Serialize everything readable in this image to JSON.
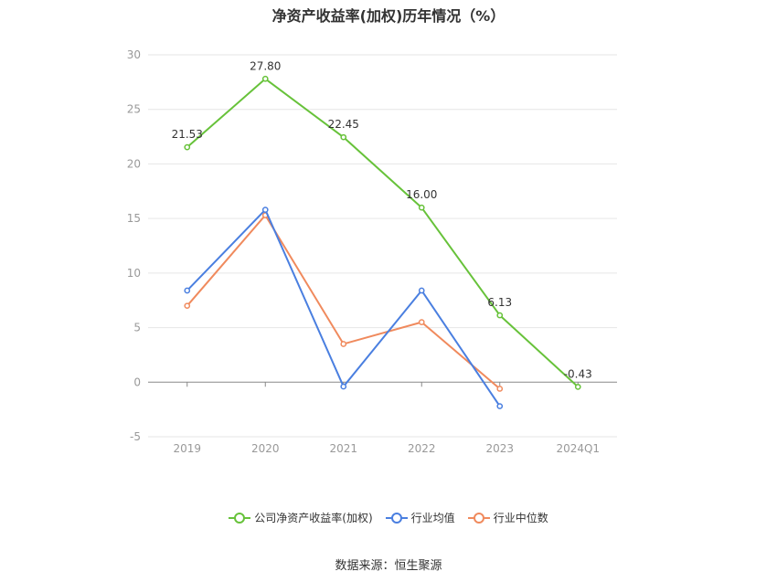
{
  "chart_data": {
    "type": "line",
    "title": "净资产收益率(加权)历年情况（%）",
    "categories": [
      "2019",
      "2020",
      "2021",
      "2022",
      "2023",
      "2024Q1"
    ],
    "ylim": [
      -5,
      30
    ],
    "yticks": [
      -5,
      0,
      5,
      10,
      15,
      20,
      25,
      30
    ],
    "grid": true,
    "legend_position": "bottom",
    "series": [
      {
        "name": "公司净资产收益率(加权)",
        "color": "#67c23a",
        "values": [
          21.53,
          27.8,
          22.45,
          16.0,
          6.13,
          -0.43
        ],
        "data_labels": [
          "21.53",
          "27.80",
          "22.45",
          "16.00",
          "6.13",
          "-0.43"
        ]
      },
      {
        "name": "行业均值",
        "color": "#4a7fe0",
        "values": [
          8.4,
          15.8,
          -0.4,
          8.4,
          -2.2,
          null
        ]
      },
      {
        "name": "行业中位数",
        "color": "#f08a5d",
        "values": [
          7.0,
          15.3,
          3.5,
          5.5,
          -0.6,
          null
        ]
      }
    ]
  },
  "source_text": "数据来源：恒生聚源"
}
